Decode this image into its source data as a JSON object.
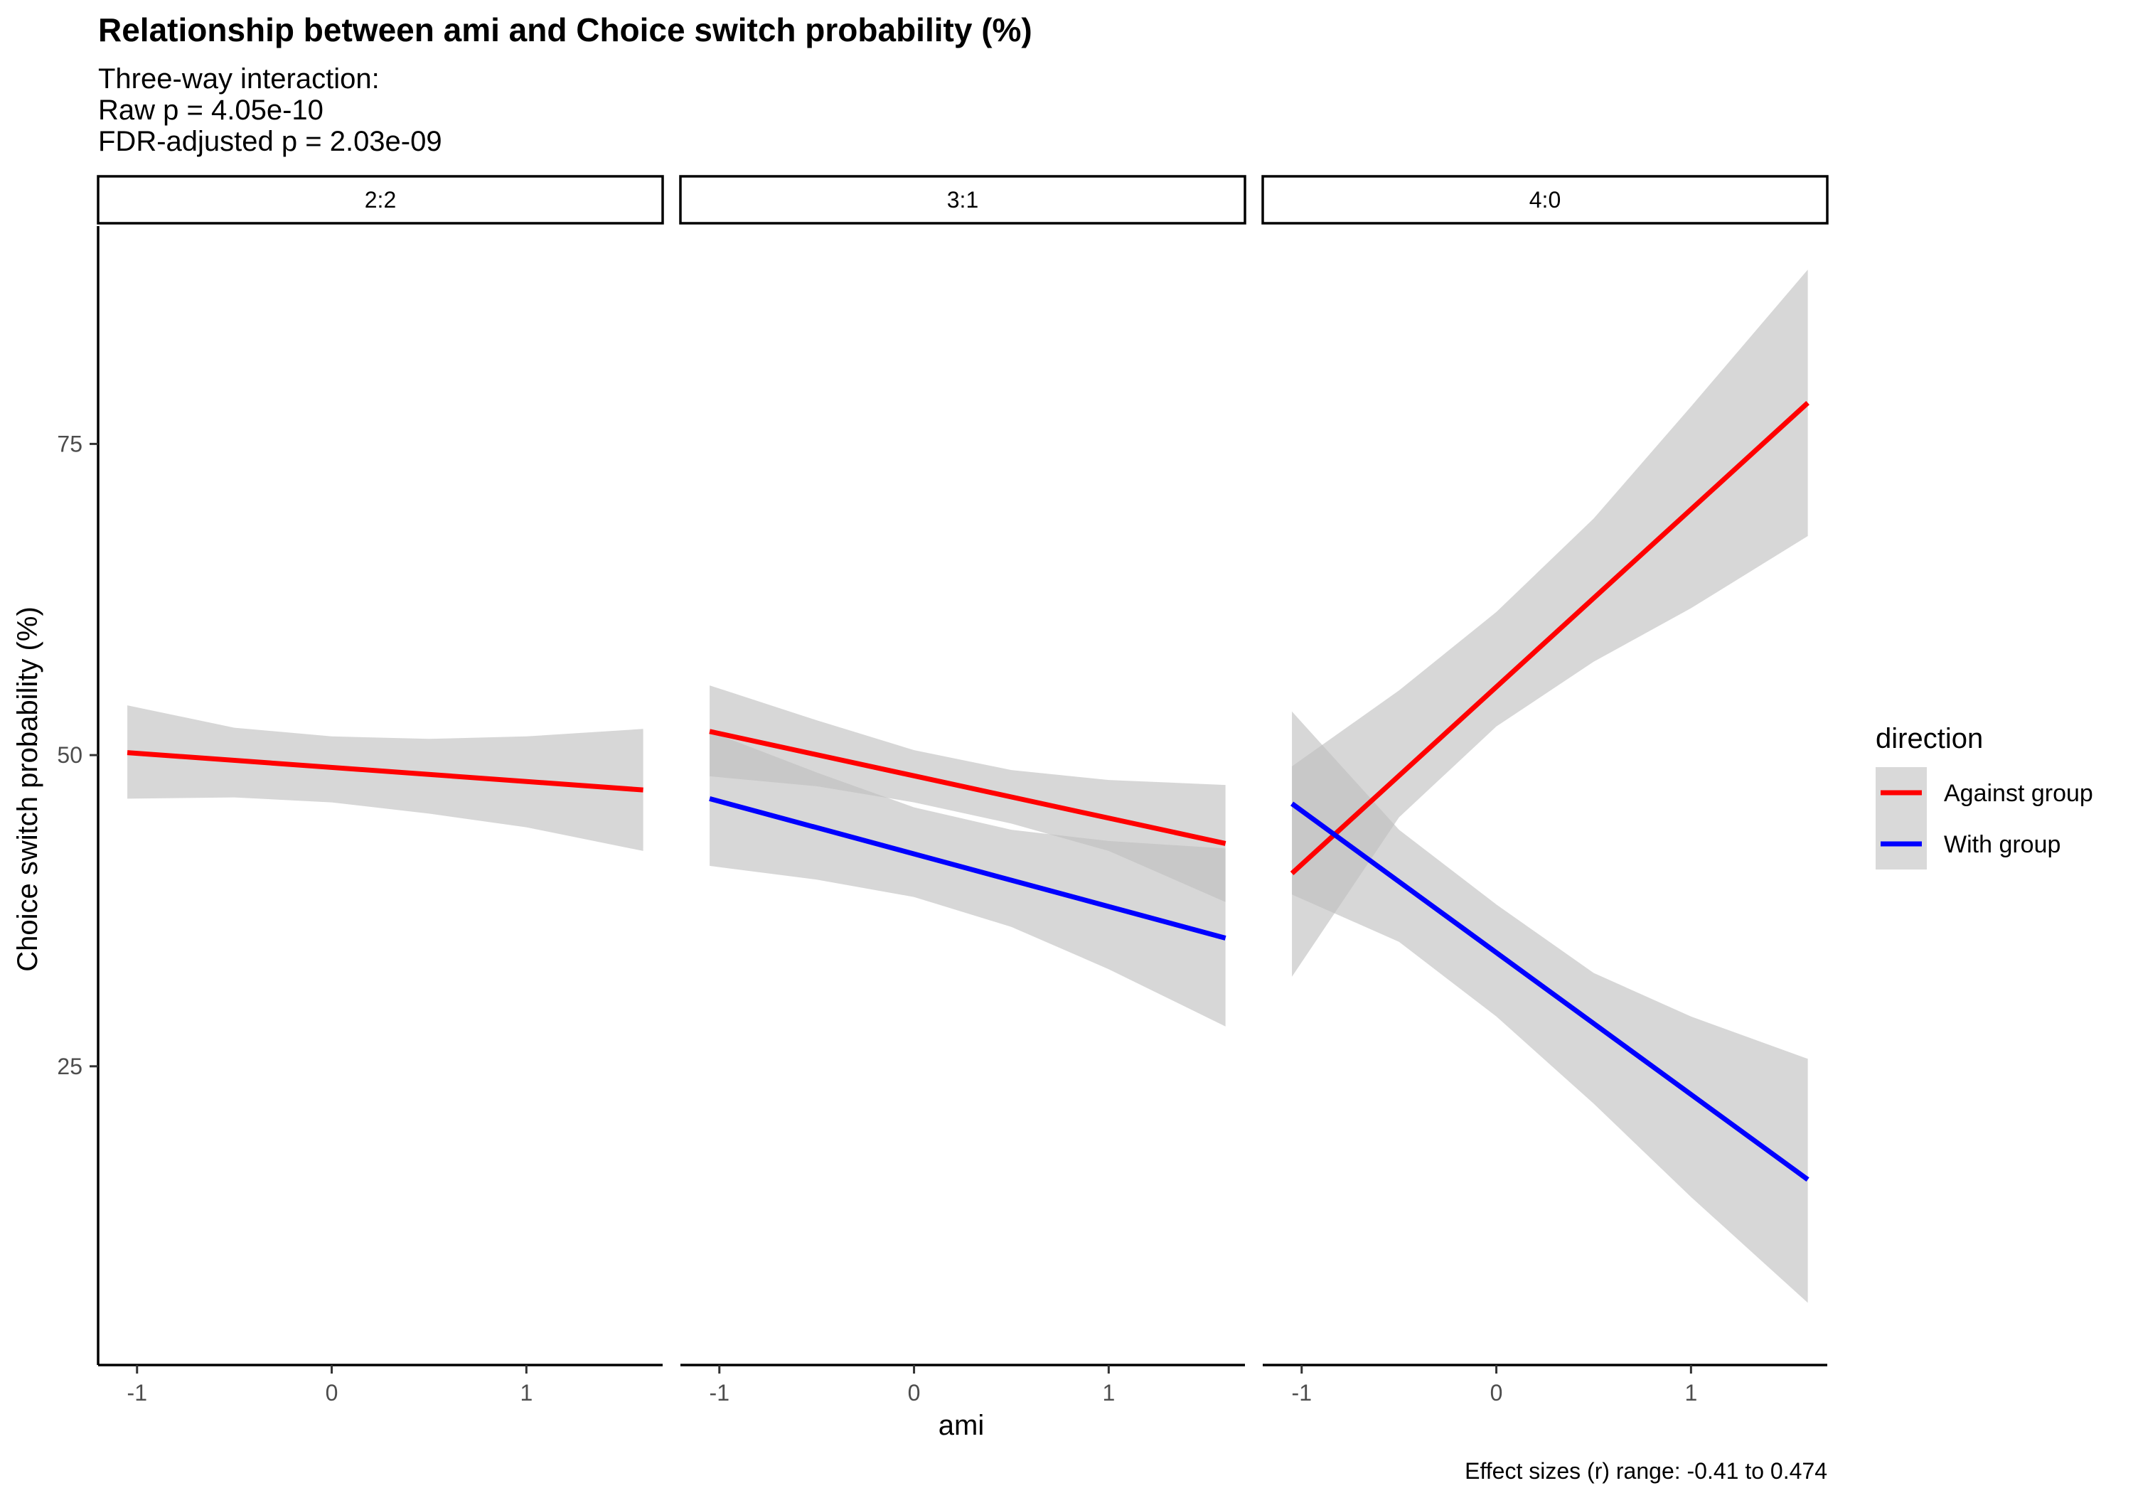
{
  "title": "Relationship between ami and Choice switch probability (%)",
  "subtitle": [
    "Three-way interaction:",
    "Raw p = 4.05e-10",
    "FDR-adjusted p = 2.03e-09"
  ],
  "caption": "Effect sizes (r) range: -0.41 to 0.474",
  "chart_data": {
    "type": "line",
    "xlabel": "ami",
    "ylabel": "Choice switch probability (%)",
    "xlim": [
      -1.2,
      1.7
    ],
    "ylim": [
      1,
      92.5
    ],
    "x_ticks": [
      -1,
      0,
      1
    ],
    "x_tick_labels": [
      "-1",
      "0",
      "1"
    ],
    "y_ticks": [
      25,
      50,
      75
    ],
    "y_tick_labels": [
      "25",
      "50",
      "75"
    ],
    "grid": false,
    "legend": {
      "title": "direction",
      "position": "right",
      "entries": [
        {
          "label": "Against group",
          "color": "#ff0000"
        },
        {
          "label": "With group",
          "color": "#0000ff"
        }
      ]
    },
    "band_color": "#bfbfbf",
    "panels": [
      {
        "label": "2:2",
        "series": [
          {
            "name": "Against group",
            "color": "#ff0000",
            "x": [
              -1.05,
              1.6
            ],
            "y": [
              50.2,
              47.2
            ],
            "band": {
              "x": [
                -1.05,
                -0.5,
                0.0,
                0.5,
                1.0,
                1.6
              ],
              "lower": [
                46.5,
                46.6,
                46.2,
                45.3,
                44.2,
                42.3
              ],
              "upper": [
                54.0,
                52.2,
                51.5,
                51.3,
                51.5,
                52.1
              ]
            }
          }
        ]
      },
      {
        "label": "3:1",
        "series": [
          {
            "name": "Against group",
            "color": "#ff0000",
            "x": [
              -1.05,
              1.6
            ],
            "y": [
              51.9,
              42.9
            ],
            "band": {
              "x": [
                -1.05,
                -0.5,
                0.0,
                0.5,
                1.0,
                1.6
              ],
              "lower": [
                48.3,
                47.5,
                46.2,
                44.5,
                42.3,
                38.2
              ],
              "upper": [
                55.6,
                52.8,
                50.4,
                48.8,
                48.0,
                47.6
              ]
            }
          },
          {
            "name": "With group",
            "color": "#0000ff",
            "x": [
              -1.05,
              1.6
            ],
            "y": [
              46.5,
              35.3
            ],
            "band": {
              "x": [
                -1.05,
                -0.5,
                0.0,
                0.5,
                1.0,
                1.6
              ],
              "lower": [
                41.1,
                40.0,
                38.6,
                36.2,
                32.8,
                28.2
              ],
              "upper": [
                51.9,
                48.6,
                45.8,
                44.0,
                43.1,
                42.5
              ]
            }
          }
        ]
      },
      {
        "label": "4:0",
        "series": [
          {
            "name": "Against group",
            "color": "#ff0000",
            "x": [
              -1.05,
              1.6
            ],
            "y": [
              40.5,
              78.3
            ],
            "band": {
              "x": [
                -1.05,
                -0.5,
                0.0,
                0.5,
                1.0,
                1.6
              ],
              "lower": [
                32.2,
                45.0,
                52.3,
                57.5,
                61.8,
                67.6
              ],
              "upper": [
                49.1,
                55.2,
                61.5,
                69.0,
                78.0,
                89.0
              ]
            }
          },
          {
            "name": "With group",
            "color": "#0000ff",
            "x": [
              -1.05,
              1.6
            ],
            "y": [
              46.1,
              15.9
            ],
            "band": {
              "x": [
                -1.05,
                -0.5,
                0.0,
                0.5,
                1.0,
                1.6
              ],
              "lower": [
                38.8,
                35.0,
                29.0,
                22.0,
                14.5,
                6.0
              ],
              "upper": [
                53.5,
                44.0,
                38.0,
                32.5,
                29.0,
                25.6
              ]
            }
          }
        ]
      }
    ]
  }
}
